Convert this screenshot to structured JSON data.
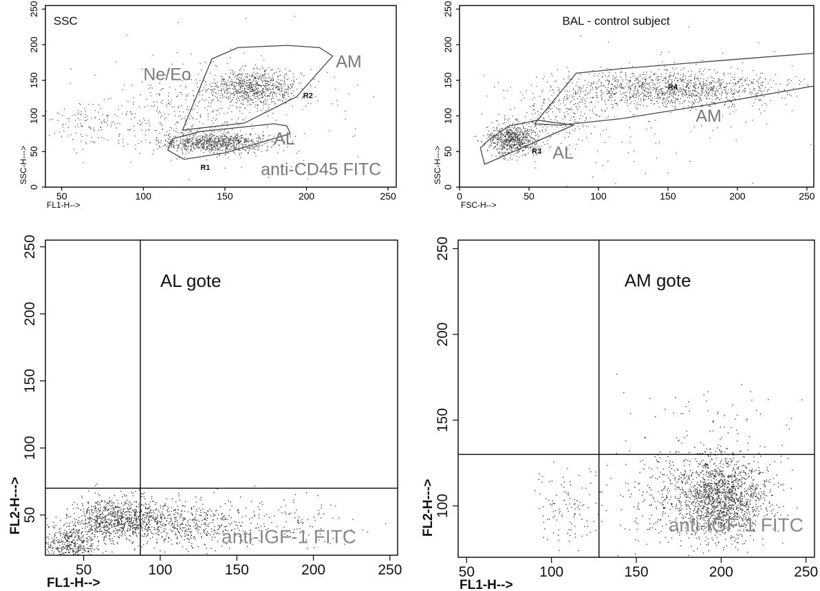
{
  "chart_data": [
    {
      "type": "scatter",
      "panel": "top-left",
      "title": "",
      "xlabel": "FL1-H-->",
      "ylabel": "SSC-H--->",
      "xlim": [
        40,
        255
      ],
      "ylim": [
        0,
        255
      ],
      "x_ticks": [
        50,
        100,
        150,
        200,
        250
      ],
      "y_ticks": [
        0,
        50,
        100,
        150,
        200,
        250
      ],
      "annotations": [
        {
          "text": "SSC",
          "x": 45,
          "y": 228,
          "style": "black"
        },
        {
          "text": "Ne/Eo",
          "x": 100,
          "y": 150,
          "style": "grey"
        },
        {
          "text": "AM",
          "x": 218,
          "y": 168,
          "style": "grey"
        },
        {
          "text": "AL",
          "x": 180,
          "y": 60,
          "style": "grey"
        },
        {
          "text": "anti-CD45 FITC",
          "x": 172,
          "y": 17,
          "style": "grey"
        }
      ],
      "regions": [
        {
          "name": "R1",
          "label_at": [
            135,
            24
          ],
          "polygon": [
            [
              115,
              52
            ],
            [
              118,
              68
            ],
            [
              135,
              78
            ],
            [
              180,
              89
            ],
            [
              188,
              86
            ],
            [
              190,
              75
            ],
            [
              174,
              64
            ],
            [
              150,
              48
            ],
            [
              125,
              39
            ]
          ]
        },
        {
          "name": "R2",
          "label_at": [
            198,
            125
          ],
          "polygon": [
            [
              124,
              80
            ],
            [
              162,
              90
            ],
            [
              194,
              127
            ],
            [
              216,
              184
            ],
            [
              208,
              196
            ],
            [
              188,
              199
            ],
            [
              158,
              196
            ],
            [
              142,
              180
            ]
          ]
        }
      ],
      "clusters": [
        {
          "x": 144,
          "y": 63,
          "sx": 17,
          "sy": 7,
          "n": 900
        },
        {
          "x": 168,
          "y": 140,
          "sx": 14,
          "sy": 13,
          "n": 850
        },
        {
          "x": 122,
          "y": 108,
          "sx": 22,
          "sy": 28,
          "n": 260
        },
        {
          "x": 68,
          "y": 90,
          "sx": 18,
          "sy": 18,
          "n": 140
        },
        {
          "x": 150,
          "y": 110,
          "sx": 55,
          "sy": 55,
          "n": 120
        }
      ]
    },
    {
      "type": "scatter",
      "panel": "top-right",
      "title": "BAL - control subject",
      "xlabel": "FSC-H-->",
      "ylabel": "SSC-H--->",
      "xlim": [
        0,
        255
      ],
      "ylim": [
        0,
        255
      ],
      "x_ticks": [
        0,
        50,
        100,
        150,
        200,
        250
      ],
      "y_ticks": [
        0,
        50,
        100,
        150,
        200,
        250
      ],
      "annotations": [
        {
          "text": "AM",
          "x": 170,
          "y": 92,
          "style": "grey"
        },
        {
          "text": "AL",
          "x": 67,
          "y": 40,
          "style": "grey"
        }
      ],
      "regions": [
        {
          "name": "R3",
          "label_at": [
            52,
            47
          ],
          "polygon": [
            [
              18,
              32
            ],
            [
              82,
              87
            ],
            [
              56,
              94
            ],
            [
              36,
              86
            ],
            [
              22,
              68
            ],
            [
              15,
              55
            ]
          ]
        },
        {
          "name": "R4",
          "label_at": [
            150,
            137
          ],
          "polygon": [
            [
              54,
              89
            ],
            [
              84,
              160
            ],
            [
              120,
              167
            ],
            [
              190,
              178
            ],
            [
              255,
              188
            ],
            [
              255,
              142
            ],
            [
              180,
              116
            ],
            [
              116,
              96
            ],
            [
              72,
              87
            ]
          ]
        }
      ],
      "clusters": [
        {
          "x": 38,
          "y": 68,
          "sx": 9,
          "sy": 11,
          "n": 750
        },
        {
          "x": 150,
          "y": 138,
          "sx": 40,
          "sy": 13,
          "n": 1300
        },
        {
          "x": 72,
          "y": 105,
          "sx": 16,
          "sy": 22,
          "n": 240
        },
        {
          "x": 120,
          "y": 100,
          "sx": 60,
          "sy": 50,
          "n": 120
        }
      ]
    },
    {
      "type": "scatter",
      "panel": "bottom-left",
      "title": "",
      "xlabel": "FL1-H-->",
      "ylabel": "FL2-H--->",
      "xlim": [
        25,
        255
      ],
      "ylim": [
        20,
        255
      ],
      "x_ticks": [
        50,
        100,
        150,
        200,
        250
      ],
      "y_ticks": [
        50,
        100,
        150,
        200,
        250
      ],
      "quadrant_lines": {
        "x": 87,
        "y": 70
      },
      "annotations": [
        {
          "text": "AL gote",
          "x": 100,
          "y": 220,
          "style": "gate"
        },
        {
          "text": "anti-IGF-1 FITC",
          "x": 140,
          "y": 29,
          "style": "grey-lg"
        }
      ],
      "clusters": [
        {
          "x": 72,
          "y": 47,
          "sx": 16,
          "sy": 8,
          "n": 900
        },
        {
          "x": 40,
          "y": 28,
          "sx": 9,
          "sy": 8,
          "n": 420
        },
        {
          "x": 115,
          "y": 43,
          "sx": 20,
          "sy": 9,
          "n": 450
        },
        {
          "x": 175,
          "y": 44,
          "sx": 28,
          "sy": 9,
          "n": 160
        }
      ]
    },
    {
      "type": "scatter",
      "panel": "bottom-right",
      "title": "",
      "xlabel": "FL1-H-->",
      "ylabel": "FL2-H--->",
      "xlim": [
        45,
        255
      ],
      "ylim": [
        70,
        255
      ],
      "x_ticks": [
        50,
        100,
        150,
        200,
        250
      ],
      "y_ticks": [
        100,
        150,
        200,
        250
      ],
      "quadrant_lines": {
        "x": 128,
        "y": 130
      },
      "annotations": [
        {
          "text": "AM gote",
          "x": 143,
          "y": 228,
          "style": "gate"
        },
        {
          "text": "anti-IGF-1 FITC",
          "x": 169,
          "y": 85,
          "style": "grey-lg"
        }
      ],
      "clusters": [
        {
          "x": 200,
          "y": 104,
          "sx": 14,
          "sy": 12,
          "n": 1500
        },
        {
          "x": 172,
          "y": 106,
          "sx": 20,
          "sy": 14,
          "n": 300
        },
        {
          "x": 108,
          "y": 98,
          "sx": 10,
          "sy": 12,
          "n": 110
        },
        {
          "x": 200,
          "y": 130,
          "sx": 25,
          "sy": 22,
          "n": 130
        }
      ]
    }
  ]
}
